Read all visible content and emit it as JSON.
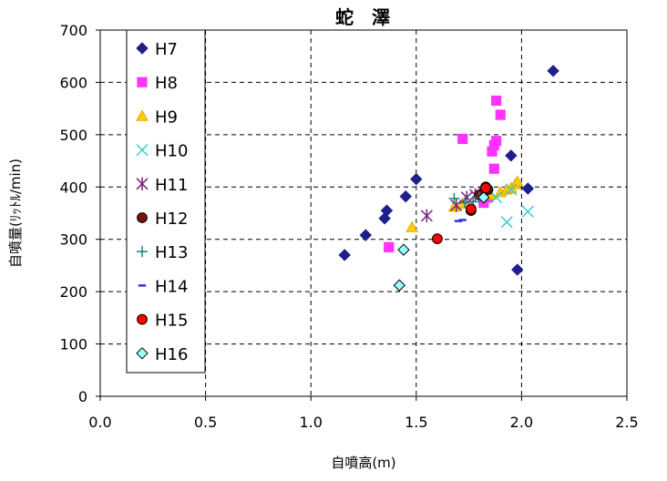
{
  "chart_data": {
    "type": "scatter",
    "title": "蛇　澤",
    "xlabel": "自噴高(m)",
    "ylabel": "自噴量(ﾘｯﾄﾙ/min)",
    "xlim": [
      0.0,
      2.5
    ],
    "ylim": [
      0,
      700
    ],
    "x_ticks": [
      "0.0",
      "0.5",
      "1.0",
      "1.5",
      "2.0",
      "2.5"
    ],
    "y_ticks": [
      "0",
      "100",
      "200",
      "300",
      "400",
      "500",
      "600",
      "700"
    ],
    "grid": "dashed",
    "legend_position": "top-left",
    "series": [
      {
        "name": "H7",
        "marker": "diamond",
        "color": "#1f1f8c",
        "points": [
          [
            1.16,
            270
          ],
          [
            1.26,
            308
          ],
          [
            1.35,
            340
          ],
          [
            1.36,
            355
          ],
          [
            1.45,
            382
          ],
          [
            1.5,
            415
          ],
          [
            1.95,
            460
          ],
          [
            1.98,
            242
          ],
          [
            2.03,
            397
          ],
          [
            2.15,
            622
          ]
        ]
      },
      {
        "name": "H8",
        "marker": "square",
        "color": "#ff33ff",
        "points": [
          [
            1.37,
            285
          ],
          [
            1.72,
            492
          ],
          [
            1.86,
            468
          ],
          [
            1.87,
            435
          ],
          [
            1.87,
            480
          ],
          [
            1.88,
            488
          ],
          [
            1.88,
            565
          ],
          [
            1.9,
            538
          ],
          [
            1.84,
            380
          ],
          [
            1.82,
            370
          ]
        ]
      },
      {
        "name": "H9",
        "marker": "triangle",
        "color": "#ffcc00",
        "points": [
          [
            1.48,
            323
          ],
          [
            1.68,
            362
          ],
          [
            1.72,
            368
          ],
          [
            1.85,
            385
          ],
          [
            1.9,
            390
          ],
          [
            1.93,
            395
          ],
          [
            1.95,
            398
          ],
          [
            1.97,
            405
          ],
          [
            1.98,
            410
          ]
        ]
      },
      {
        "name": "H10",
        "marker": "x",
        "color": "#33cccc",
        "points": [
          [
            1.93,
            333
          ],
          [
            2.03,
            353
          ],
          [
            1.88,
            380
          ],
          [
            1.95,
            395
          ]
        ]
      },
      {
        "name": "H11",
        "marker": "star",
        "color": "#7a1f7a",
        "points": [
          [
            1.55,
            345
          ],
          [
            1.69,
            365
          ],
          [
            1.74,
            380
          ],
          [
            1.78,
            385
          ],
          [
            1.82,
            390
          ]
        ]
      },
      {
        "name": "H12",
        "marker": "circle",
        "color": "#7a1010",
        "points": [
          [
            1.76,
            355
          ],
          [
            1.8,
            385
          ],
          [
            1.83,
            400
          ],
          [
            1.84,
            395
          ]
        ]
      },
      {
        "name": "H13",
        "marker": "plus",
        "color": "#1f7f7f",
        "points": [
          [
            1.68,
            378
          ],
          [
            1.73,
            370
          ],
          [
            1.77,
            372
          ],
          [
            1.8,
            380
          ]
        ]
      },
      {
        "name": "H14",
        "marker": "dash",
        "color": "#3333cc",
        "points": [
          [
            1.7,
            335
          ],
          [
            1.72,
            337
          ]
        ]
      },
      {
        "name": "H15",
        "marker": "circle",
        "color": "#ff0000",
        "points": [
          [
            1.6,
            301
          ],
          [
            1.76,
            358
          ],
          [
            1.83,
            398
          ]
        ]
      },
      {
        "name": "H16",
        "marker": "diamond",
        "color": "#99ffff",
        "points": [
          [
            1.42,
            212
          ],
          [
            1.44,
            280
          ],
          [
            1.82,
            380
          ]
        ]
      }
    ]
  }
}
